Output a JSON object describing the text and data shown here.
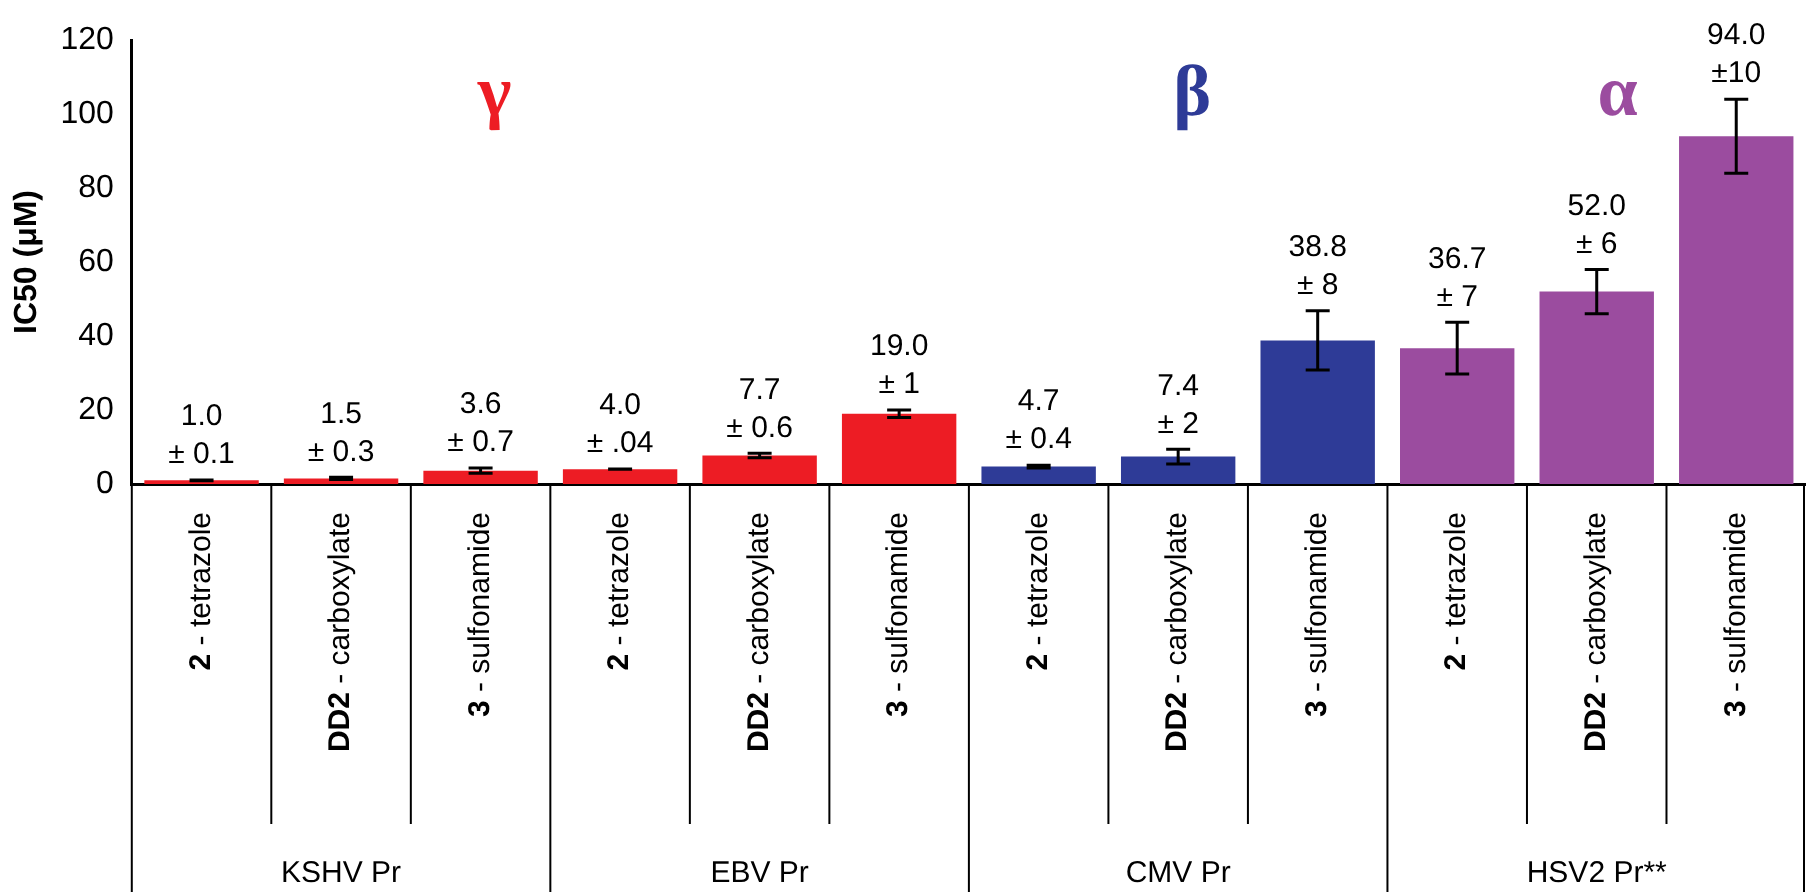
{
  "chart_data": {
    "type": "bar",
    "ylabel": "IC50 (μM)",
    "categories": [
      "2 - tetrazole",
      "DD2 - carboxylate",
      "3 - sulfonamide",
      "2 - tetrazole",
      "DD2 - carboxylate",
      "3 - sulfonamide",
      "2 - tetrazole",
      "DD2 - carboxylate",
      "3 - sulfonamide",
      "2 - tetrazole",
      "DD2 - carboxylate",
      "3 - sulfonamide"
    ],
    "values": [
      1.0,
      1.5,
      3.6,
      4.0,
      7.7,
      19.0,
      4.7,
      7.4,
      38.8,
      36.7,
      52.0,
      94.0
    ],
    "errors": [
      0.1,
      0.3,
      0.7,
      0.04,
      0.6,
      1,
      0.4,
      2,
      8,
      7,
      6,
      10
    ],
    "value_labels": [
      "1.0\n± 0.1",
      "1.5\n± 0.3",
      "3.6\n± 0.7",
      "4.0\n± .04",
      "7.7\n± 0.6",
      "19.0\n± 1",
      "4.7\n± 0.4",
      "7.4\n± 2",
      "38.8\n± 8",
      "36.7\n± 7",
      "52.0\n± 6",
      "94.0\n±10"
    ],
    "colors": [
      "#ed1c24",
      "#ed1c24",
      "#ed1c24",
      "#ed1c24",
      "#ed1c24",
      "#ed1c24",
      "#2e3b97",
      "#2e3b97",
      "#2e3b97",
      "#9b4c9f",
      "#9b4c9f",
      "#9b4c9f"
    ],
    "ylim": [
      0,
      120
    ],
    "yticks": [
      0,
      20,
      40,
      60,
      80,
      100,
      120
    ],
    "grid": false,
    "legend": false,
    "annotations": [
      "γ",
      "β",
      "α",
      "KSHV Pr",
      "EBV Pr",
      "CMV Pr",
      "HSV2 Pr**"
    ]
  }
}
